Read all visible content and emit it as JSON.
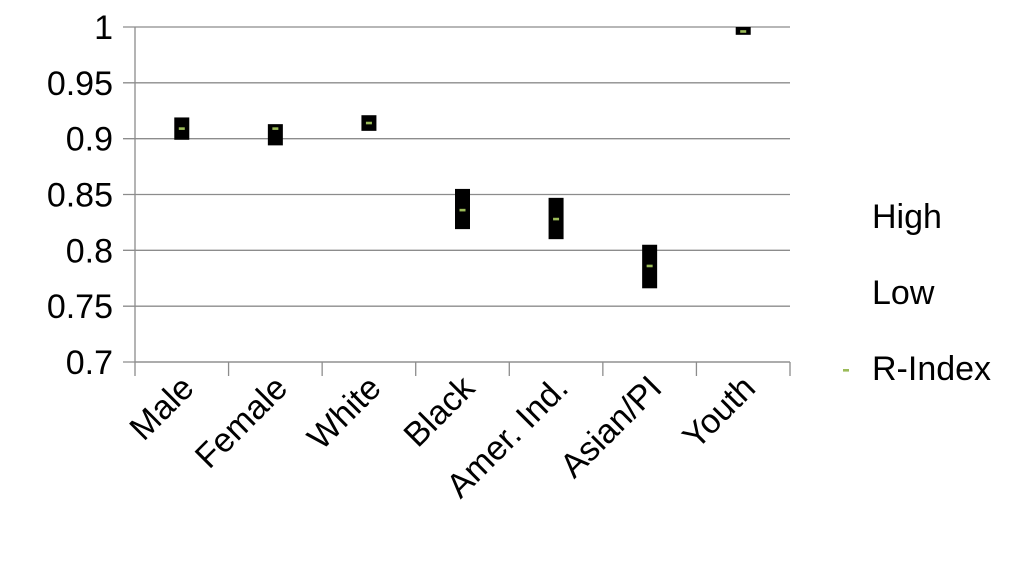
{
  "chart_data": {
    "type": "high-low",
    "categories": [
      "Male",
      "Female",
      "White",
      "Black",
      "Amer. Ind.",
      "Asian/PI",
      "Youth"
    ],
    "series": [
      {
        "name": "High",
        "values": [
          0.919,
          0.913,
          0.921,
          0.855,
          0.847,
          0.805,
          1.0
        ]
      },
      {
        "name": "Low",
        "values": [
          0.899,
          0.894,
          0.907,
          0.819,
          0.81,
          0.766,
          0.993
        ]
      },
      {
        "name": "R-Index",
        "values": [
          0.909,
          0.909,
          0.914,
          0.836,
          0.828,
          0.786,
          0.996
        ]
      }
    ],
    "yticks": [
      "0.7",
      "0.75",
      "0.8",
      "0.85",
      "0.9",
      "0.95",
      "1"
    ],
    "ylim": [
      0.7,
      1.0
    ],
    "grid": true,
    "legend_position": "right",
    "colors": {
      "bar": "#000000",
      "r_index": "#9bbb59",
      "grid": "#8c8c8c"
    }
  }
}
